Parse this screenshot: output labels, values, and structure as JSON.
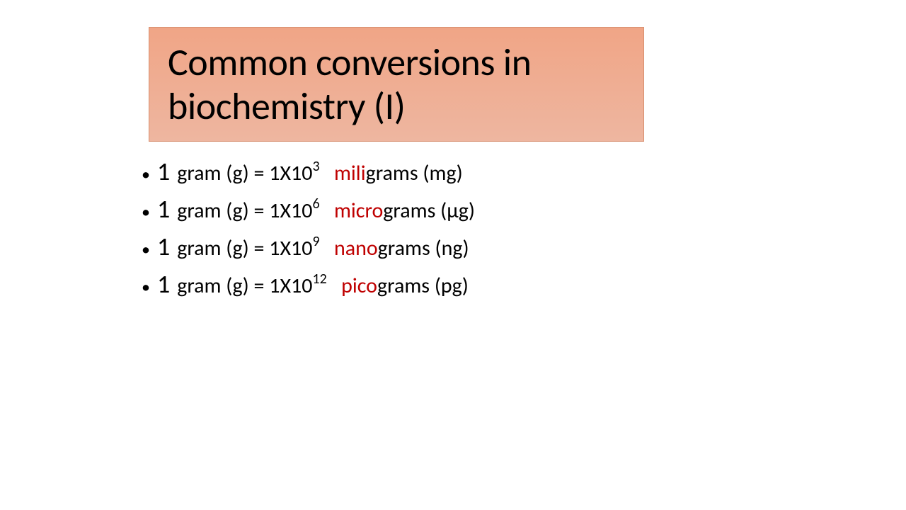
{
  "title": {
    "text": "Common conversions in biochemistry (I)",
    "background_gradient_top": "#f0a586",
    "background_gradient_bottom": "#eeb6a0",
    "border_color": "#d89070",
    "text_color": "#000000",
    "fontsize": 54
  },
  "list": {
    "bullet_char": "•",
    "items": [
      {
        "one": "1",
        "prefix": "gram (g) = 1X10",
        "exponent": "3",
        "gap": "   ",
        "red_part": "mili",
        "black_part": "grams (mg)"
      },
      {
        "one": "1",
        "prefix": "gram (g) = 1X10",
        "exponent": "6",
        "gap": "   ",
        "red_part": "micro",
        "black_part": "grams (µg)"
      },
      {
        "one": "1",
        "prefix": "gram (g) = 1X10",
        "exponent": "9",
        "gap": "   ",
        "red_part": "nano",
        "black_part": "grams (ng)"
      },
      {
        "one": "1",
        "prefix": "gram (g) = 1X10",
        "exponent": "12",
        "gap": "   ",
        "red_part": "pico",
        "black_part": "grams (pg)"
      }
    ],
    "text_color": "#000000",
    "red_color": "#bf0000",
    "fontsize_one": 36,
    "fontsize_text": 30,
    "fontsize_sup": 20
  },
  "colors": {
    "background": "#ffffff"
  }
}
